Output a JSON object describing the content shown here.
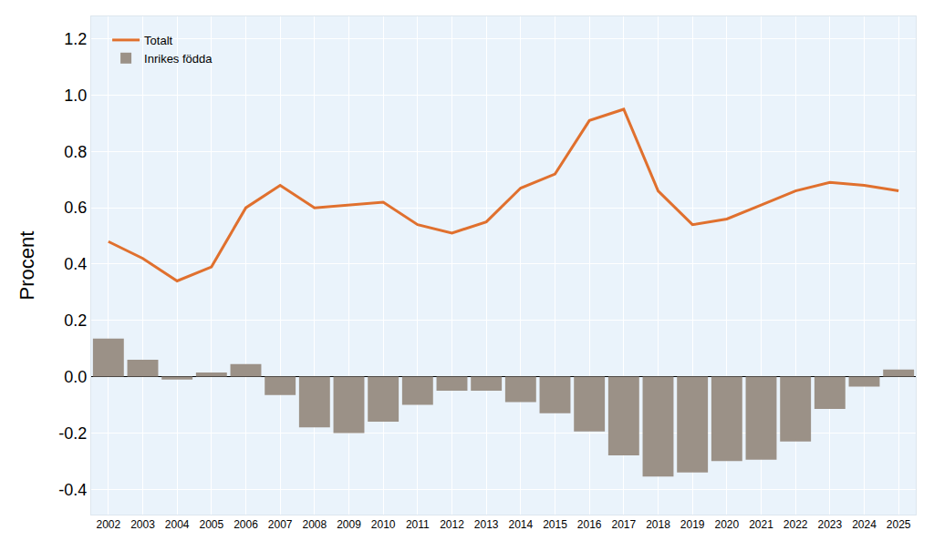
{
  "chart_data": {
    "type": "bar",
    "y_label": "Procent",
    "categories": [
      "2002",
      "2003",
      "2004",
      "2005",
      "2006",
      "2007",
      "2008",
      "2009",
      "2010",
      "2011",
      "2012",
      "2013",
      "2014",
      "2015",
      "2016",
      "2017",
      "2018",
      "2019",
      "2020",
      "2021",
      "2022",
      "2023",
      "2024",
      "2025"
    ],
    "series": [
      {
        "name": "Inrikes födda",
        "type": "bar",
        "color": "#9b9187",
        "values": [
          0.135,
          0.06,
          -0.01,
          0.015,
          0.045,
          -0.065,
          -0.18,
          -0.2,
          -0.16,
          -0.1,
          -0.05,
          -0.05,
          -0.09,
          -0.13,
          -0.195,
          -0.28,
          -0.355,
          -0.34,
          -0.3,
          -0.295,
          -0.23,
          -0.115,
          -0.035,
          0.025
        ]
      },
      {
        "name": "Totalt",
        "type": "line",
        "color": "#e0702e",
        "values": [
          0.48,
          0.42,
          0.34,
          0.39,
          0.6,
          0.68,
          0.6,
          0.61,
          0.62,
          0.54,
          0.51,
          0.55,
          0.67,
          0.72,
          0.91,
          0.95,
          0.66,
          0.54,
          0.56,
          0.61,
          0.66,
          0.69,
          0.68,
          0.66
        ]
      }
    ],
    "ylim": [
      -0.49,
      1.28
    ],
    "yticks": [
      -0.4,
      -0.2,
      {
        "value": 0,
        "label": "0.0"
      },
      0.2,
      0.4,
      0.6,
      0.8,
      {
        "value": 1,
        "label": "1.0"
      },
      1.2
    ],
    "grid": true,
    "legend": "upper left"
  }
}
